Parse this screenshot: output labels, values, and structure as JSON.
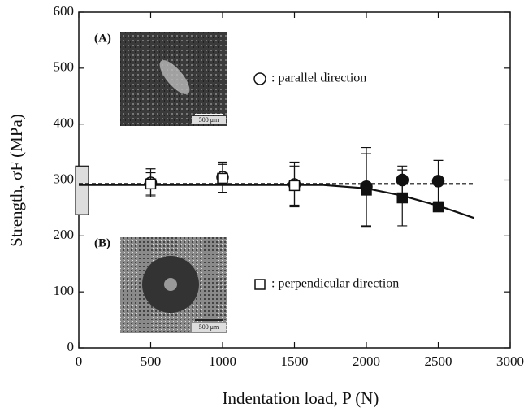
{
  "chart_data": {
    "type": "scatter",
    "x_label": "Indentation load, P (N)",
    "y_label": "Strength, σF (MPa)",
    "xlim": [
      0,
      3000
    ],
    "xticks": [
      0,
      500,
      1000,
      1500,
      2000,
      2500,
      3000
    ],
    "ylim": [
      0,
      600
    ],
    "yticks": [
      0,
      100,
      200,
      300,
      400,
      500,
      600
    ],
    "grid": false,
    "series": [
      {
        "name": ": parallel direction",
        "marker": "circle",
        "color": "#111111",
        "x": [
          500,
          1000,
          1500,
          2000,
          2250,
          2500
        ],
        "values": [
          295,
          305,
          292,
          288,
          300,
          298
        ],
        "errors": [
          25,
          27,
          40,
          70,
          25,
          37
        ],
        "marker_filled": [
          false,
          false,
          false,
          true,
          true,
          true
        ]
      },
      {
        "name": ": perpendicular direction",
        "marker": "square",
        "color": "#111111",
        "x": [
          500,
          1000,
          1500,
          2000,
          2250,
          2500
        ],
        "values": [
          293,
          303,
          290,
          282,
          268,
          252
        ],
        "errors": [
          20,
          25,
          35,
          65,
          50,
          0
        ],
        "marker_filled": [
          false,
          false,
          false,
          true,
          true,
          true
        ]
      }
    ],
    "reference_range": {
      "x": 0,
      "low": 238,
      "high": 325
    },
    "fit_lines": [
      {
        "style": "dashed",
        "x": [
          0,
          2750
        ],
        "values": [
          293,
          293
        ]
      },
      {
        "style": "solid",
        "x": [
          0,
          1700,
          2000,
          2250,
          2500,
          2750
        ],
        "values": [
          291,
          291,
          285,
          272,
          254,
          232
        ]
      }
    ],
    "insets": [
      {
        "label": "(A)",
        "scale_bar": "500 μm"
      },
      {
        "label": "(B)",
        "scale_bar": "500 μm"
      }
    ]
  }
}
